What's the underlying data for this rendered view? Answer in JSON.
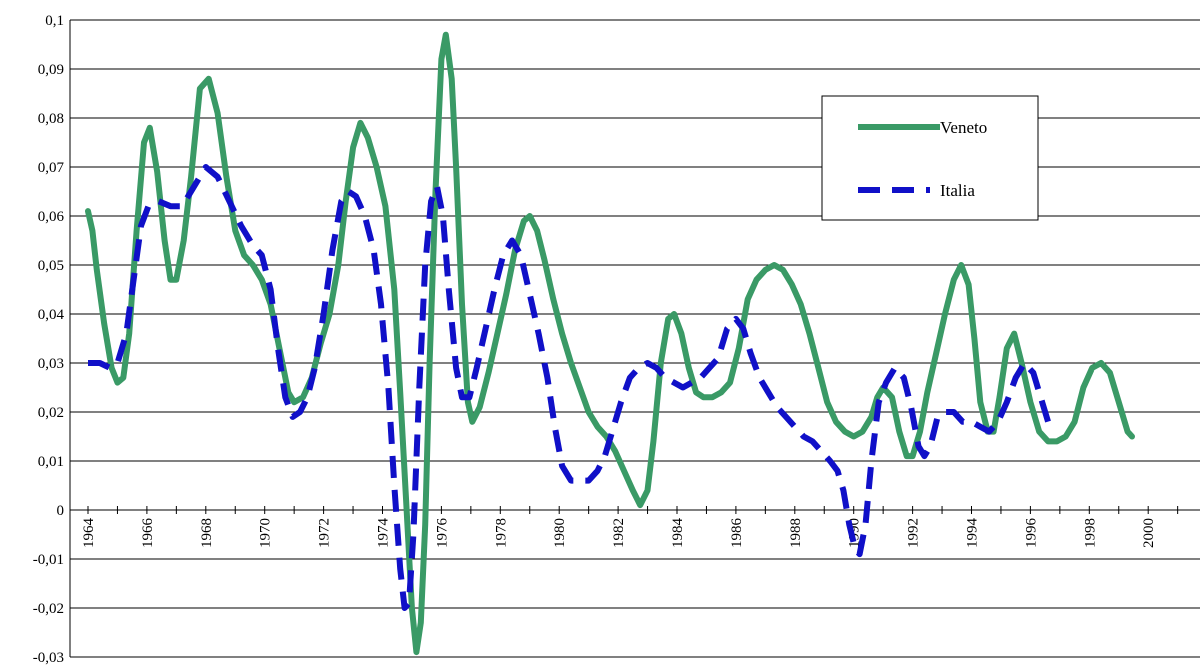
{
  "chart_data": {
    "type": "line",
    "title": "",
    "xlabel": "",
    "ylabel": "",
    "xlim": [
      1964,
      2001
    ],
    "ylim": [
      -0.03,
      0.1
    ],
    "grid": true,
    "legend_position": "top-right",
    "y_ticks": [
      "0,1",
      "0,09",
      "0,08",
      "0,07",
      "0,06",
      "0,05",
      "0,04",
      "0,03",
      "0,02",
      "0,01",
      "0",
      "-0,01",
      "-0,02",
      "-0,03"
    ],
    "x_ticks": [
      "1964",
      "1966",
      "1968",
      "1970",
      "1972",
      "1974",
      "1976",
      "1978",
      "1980",
      "1982",
      "1984",
      "1986",
      "1988",
      "1990",
      "1992",
      "1994",
      "1996",
      "1998",
      "2000"
    ],
    "series": [
      {
        "name": "Veneto",
        "color": "#3a9a66",
        "dash": "solid",
        "points": [
          [
            1964.0,
            0.061
          ],
          [
            1964.15,
            0.057
          ],
          [
            1964.3,
            0.049
          ],
          [
            1964.55,
            0.038
          ],
          [
            1964.8,
            0.029
          ],
          [
            1965.0,
            0.026
          ],
          [
            1965.2,
            0.027
          ],
          [
            1965.4,
            0.036
          ],
          [
            1965.65,
            0.057
          ],
          [
            1965.9,
            0.075
          ],
          [
            1966.1,
            0.078
          ],
          [
            1966.35,
            0.069
          ],
          [
            1966.6,
            0.055
          ],
          [
            1966.8,
            0.047
          ],
          [
            1967.0,
            0.047
          ],
          [
            1967.25,
            0.055
          ],
          [
            1967.5,
            0.068
          ],
          [
            1967.8,
            0.086
          ],
          [
            1968.1,
            0.088
          ],
          [
            1968.4,
            0.081
          ],
          [
            1968.7,
            0.068
          ],
          [
            1969.0,
            0.057
          ],
          [
            1969.3,
            0.052
          ],
          [
            1969.6,
            0.05
          ],
          [
            1969.9,
            0.047
          ],
          [
            1970.2,
            0.042
          ],
          [
            1970.5,
            0.033
          ],
          [
            1970.8,
            0.024
          ],
          [
            1971.0,
            0.022
          ],
          [
            1971.3,
            0.023
          ],
          [
            1971.6,
            0.027
          ],
          [
            1971.9,
            0.034
          ],
          [
            1972.2,
            0.04
          ],
          [
            1972.5,
            0.05
          ],
          [
            1972.75,
            0.063
          ],
          [
            1973.0,
            0.074
          ],
          [
            1973.25,
            0.079
          ],
          [
            1973.5,
            0.076
          ],
          [
            1973.8,
            0.07
          ],
          [
            1974.1,
            0.062
          ],
          [
            1974.4,
            0.045
          ],
          [
            1974.6,
            0.024
          ],
          [
            1974.8,
            0.002
          ],
          [
            1975.0,
            -0.02
          ],
          [
            1975.15,
            -0.029
          ],
          [
            1975.3,
            -0.023
          ],
          [
            1975.45,
            -0.003
          ],
          [
            1975.6,
            0.03
          ],
          [
            1975.8,
            0.065
          ],
          [
            1976.0,
            0.092
          ],
          [
            1976.15,
            0.097
          ],
          [
            1976.35,
            0.088
          ],
          [
            1976.5,
            0.07
          ],
          [
            1976.7,
            0.042
          ],
          [
            1976.9,
            0.022
          ],
          [
            1977.05,
            0.018
          ],
          [
            1977.3,
            0.021
          ],
          [
            1977.6,
            0.028
          ],
          [
            1977.9,
            0.036
          ],
          [
            1978.2,
            0.044
          ],
          [
            1978.5,
            0.053
          ],
          [
            1978.8,
            0.059
          ],
          [
            1979.0,
            0.06
          ],
          [
            1979.25,
            0.057
          ],
          [
            1979.5,
            0.051
          ],
          [
            1979.8,
            0.043
          ],
          [
            1980.1,
            0.036
          ],
          [
            1980.4,
            0.03
          ],
          [
            1980.7,
            0.025
          ],
          [
            1981.0,
            0.02
          ],
          [
            1981.3,
            0.017
          ],
          [
            1981.6,
            0.015
          ],
          [
            1981.9,
            0.012
          ],
          [
            1982.2,
            0.008
          ],
          [
            1982.5,
            0.004
          ],
          [
            1982.75,
            0.001
          ],
          [
            1983.0,
            0.004
          ],
          [
            1983.2,
            0.014
          ],
          [
            1983.45,
            0.03
          ],
          [
            1983.7,
            0.039
          ],
          [
            1983.9,
            0.04
          ],
          [
            1984.15,
            0.036
          ],
          [
            1984.4,
            0.029
          ],
          [
            1984.65,
            0.024
          ],
          [
            1984.9,
            0.023
          ],
          [
            1985.2,
            0.023
          ],
          [
            1985.5,
            0.024
          ],
          [
            1985.8,
            0.026
          ],
          [
            1986.1,
            0.033
          ],
          [
            1986.4,
            0.043
          ],
          [
            1986.7,
            0.047
          ],
          [
            1987.0,
            0.049
          ],
          [
            1987.3,
            0.05
          ],
          [
            1987.6,
            0.049
          ],
          [
            1987.9,
            0.046
          ],
          [
            1988.2,
            0.042
          ],
          [
            1988.5,
            0.036
          ],
          [
            1988.8,
            0.029
          ],
          [
            1989.1,
            0.022
          ],
          [
            1989.4,
            0.018
          ],
          [
            1989.7,
            0.016
          ],
          [
            1990.0,
            0.015
          ],
          [
            1990.3,
            0.016
          ],
          [
            1990.6,
            0.019
          ],
          [
            1990.8,
            0.023
          ],
          [
            1991.0,
            0.025
          ],
          [
            1991.3,
            0.023
          ],
          [
            1991.55,
            0.016
          ],
          [
            1991.8,
            0.011
          ],
          [
            1992.0,
            0.011
          ],
          [
            1992.25,
            0.016
          ],
          [
            1992.5,
            0.024
          ],
          [
            1992.8,
            0.032
          ],
          [
            1993.1,
            0.04
          ],
          [
            1993.4,
            0.047
          ],
          [
            1993.65,
            0.05
          ],
          [
            1993.9,
            0.046
          ],
          [
            1994.1,
            0.035
          ],
          [
            1994.3,
            0.022
          ],
          [
            1994.55,
            0.016
          ],
          [
            1994.75,
            0.016
          ],
          [
            1994.95,
            0.023
          ],
          [
            1995.2,
            0.033
          ],
          [
            1995.45,
            0.036
          ],
          [
            1995.7,
            0.03
          ],
          [
            1996.0,
            0.022
          ],
          [
            1996.3,
            0.016
          ],
          [
            1996.6,
            0.014
          ],
          [
            1996.9,
            0.014
          ],
          [
            1997.2,
            0.015
          ],
          [
            1997.5,
            0.018
          ],
          [
            1997.8,
            0.025
          ],
          [
            1998.1,
            0.029
          ],
          [
            1998.4,
            0.03
          ],
          [
            1998.7,
            0.028
          ],
          [
            1999.0,
            0.022
          ],
          [
            1999.3,
            0.016
          ],
          [
            1999.45,
            0.015
          ]
        ]
      },
      {
        "name": "Italia",
        "color": "#1010c8",
        "dash": "dashed",
        "points": [
          [
            1964.0,
            0.03
          ],
          [
            1964.4,
            0.03
          ],
          [
            1964.75,
            0.029
          ],
          [
            1965.0,
            0.03
          ],
          [
            1965.3,
            0.036
          ],
          [
            1965.55,
            0.047
          ],
          [
            1965.8,
            0.058
          ],
          [
            1966.05,
            0.062
          ],
          [
            1966.4,
            0.063
          ],
          [
            1966.8,
            0.062
          ],
          [
            1967.2,
            0.062
          ],
          [
            1967.6,
            0.066
          ],
          [
            1968.0,
            0.07
          ],
          [
            1968.4,
            0.068
          ],
          [
            1968.8,
            0.063
          ],
          [
            1969.2,
            0.058
          ],
          [
            1969.6,
            0.054
          ],
          [
            1969.9,
            0.052
          ],
          [
            1970.2,
            0.045
          ],
          [
            1970.45,
            0.033
          ],
          [
            1970.7,
            0.023
          ],
          [
            1970.95,
            0.019
          ],
          [
            1971.2,
            0.02
          ],
          [
            1971.45,
            0.023
          ],
          [
            1971.7,
            0.029
          ],
          [
            1972.0,
            0.04
          ],
          [
            1972.3,
            0.053
          ],
          [
            1972.6,
            0.063
          ],
          [
            1972.85,
            0.065
          ],
          [
            1973.1,
            0.064
          ],
          [
            1973.4,
            0.06
          ],
          [
            1973.7,
            0.053
          ],
          [
            1973.95,
            0.042
          ],
          [
            1974.2,
            0.025
          ],
          [
            1974.4,
            0.005
          ],
          [
            1974.6,
            -0.012
          ],
          [
            1974.75,
            -0.02
          ],
          [
            1974.9,
            -0.019
          ],
          [
            1975.05,
            -0.005
          ],
          [
            1975.25,
            0.025
          ],
          [
            1975.45,
            0.05
          ],
          [
            1975.65,
            0.063
          ],
          [
            1975.85,
            0.066
          ],
          [
            1976.05,
            0.06
          ],
          [
            1976.25,
            0.045
          ],
          [
            1976.5,
            0.029
          ],
          [
            1976.7,
            0.023
          ],
          [
            1976.95,
            0.023
          ],
          [
            1977.2,
            0.029
          ],
          [
            1977.5,
            0.037
          ],
          [
            1977.8,
            0.045
          ],
          [
            1978.1,
            0.052
          ],
          [
            1978.4,
            0.055
          ],
          [
            1978.7,
            0.052
          ],
          [
            1979.0,
            0.044
          ],
          [
            1979.3,
            0.036
          ],
          [
            1979.6,
            0.027
          ],
          [
            1979.85,
            0.017
          ],
          [
            1980.1,
            0.009
          ],
          [
            1980.4,
            0.006
          ],
          [
            1980.7,
            0.006
          ],
          [
            1981.0,
            0.006
          ],
          [
            1981.3,
            0.008
          ],
          [
            1981.55,
            0.011
          ],
          [
            1981.8,
            0.016
          ],
          [
            1982.1,
            0.022
          ],
          [
            1982.4,
            0.027
          ],
          [
            1982.7,
            0.029
          ],
          [
            1983.0,
            0.03
          ],
          [
            1983.3,
            0.029
          ],
          [
            1983.6,
            0.027
          ],
          [
            1983.9,
            0.026
          ],
          [
            1984.2,
            0.025
          ],
          [
            1984.5,
            0.026
          ],
          [
            1984.8,
            0.027
          ],
          [
            1985.1,
            0.029
          ],
          [
            1985.4,
            0.031
          ],
          [
            1985.7,
            0.037
          ],
          [
            1986.0,
            0.039
          ],
          [
            1986.25,
            0.037
          ],
          [
            1986.5,
            0.032
          ],
          [
            1986.8,
            0.027
          ],
          [
            1987.1,
            0.024
          ],
          [
            1987.4,
            0.021
          ],
          [
            1987.7,
            0.019
          ],
          [
            1988.0,
            0.017
          ],
          [
            1988.3,
            0.015
          ],
          [
            1988.6,
            0.014
          ],
          [
            1988.9,
            0.012
          ],
          [
            1989.2,
            0.01
          ],
          [
            1989.45,
            0.008
          ],
          [
            1989.65,
            0.004
          ],
          [
            1989.85,
            -0.003
          ],
          [
            1990.05,
            -0.008
          ],
          [
            1990.2,
            -0.009
          ],
          [
            1990.4,
            -0.003
          ],
          [
            1990.6,
            0.01
          ],
          [
            1990.85,
            0.022
          ],
          [
            1991.1,
            0.026
          ],
          [
            1991.4,
            0.029
          ],
          [
            1991.7,
            0.027
          ],
          [
            1991.95,
            0.021
          ],
          [
            1992.2,
            0.013
          ],
          [
            1992.4,
            0.011
          ],
          [
            1992.6,
            0.013
          ],
          [
            1992.85,
            0.019
          ],
          [
            1993.1,
            0.02
          ],
          [
            1993.4,
            0.02
          ],
          [
            1993.7,
            0.018
          ],
          [
            1994.0,
            0.018
          ],
          [
            1994.3,
            0.017
          ],
          [
            1994.6,
            0.016
          ],
          [
            1994.9,
            0.018
          ],
          [
            1995.2,
            0.022
          ],
          [
            1995.5,
            0.027
          ],
          [
            1995.8,
            0.03
          ],
          [
            1996.1,
            0.028
          ],
          [
            1996.4,
            0.022
          ],
          [
            1996.6,
            0.018
          ],
          [
            1996.75,
            0.017
          ]
        ]
      }
    ]
  }
}
